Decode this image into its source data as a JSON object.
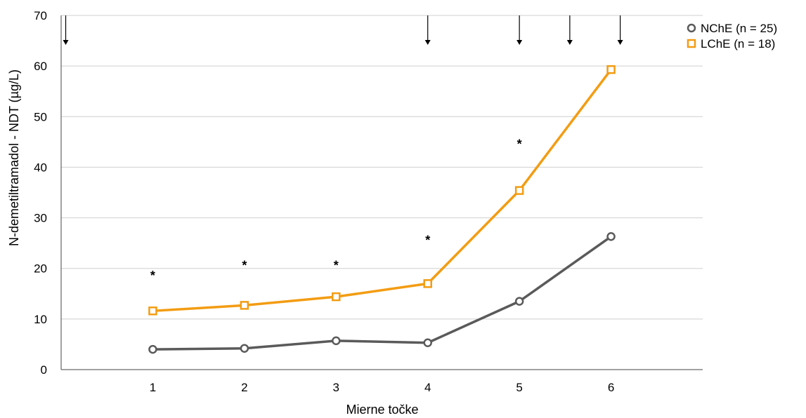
{
  "chart_data": {
    "type": "line",
    "title": "",
    "xlabel": "Mierne točke",
    "ylabel": "N-demetiltramadol - NDT (µg/L)",
    "ylim": [
      0,
      70
    ],
    "yticks": [
      0,
      10,
      20,
      30,
      40,
      50,
      60,
      70
    ],
    "xlim": [
      0.0,
      7.0
    ],
    "categories": [
      "1",
      "2",
      "3",
      "4",
      "5",
      "6"
    ],
    "x": [
      1,
      2,
      3,
      4,
      5,
      6
    ],
    "grid": "horizontal",
    "legend_position": "top-right",
    "series": [
      {
        "name": "NChE (n = 25)",
        "marker": "circle",
        "color": "#5a5a5a",
        "values": [
          4.0,
          4.2,
          5.7,
          5.3,
          13.5,
          26.3
        ]
      },
      {
        "name": "LChE (n = 18)",
        "marker": "square",
        "color": "#f39c12",
        "values": [
          11.6,
          12.7,
          14.4,
          17.0,
          35.4,
          59.3
        ]
      }
    ],
    "annotations": {
      "significance": [
        {
          "x": 1,
          "y": 19.0,
          "text": "*"
        },
        {
          "x": 2,
          "y": 21.0,
          "text": "*"
        },
        {
          "x": 3,
          "y": 21.0,
          "text": "*"
        },
        {
          "x": 4,
          "y": 26.0,
          "text": "*"
        },
        {
          "x": 5,
          "y": 45.0,
          "text": "*"
        }
      ],
      "arrows_x": [
        0.05,
        4.0,
        5.0,
        5.55,
        6.1
      ]
    }
  }
}
